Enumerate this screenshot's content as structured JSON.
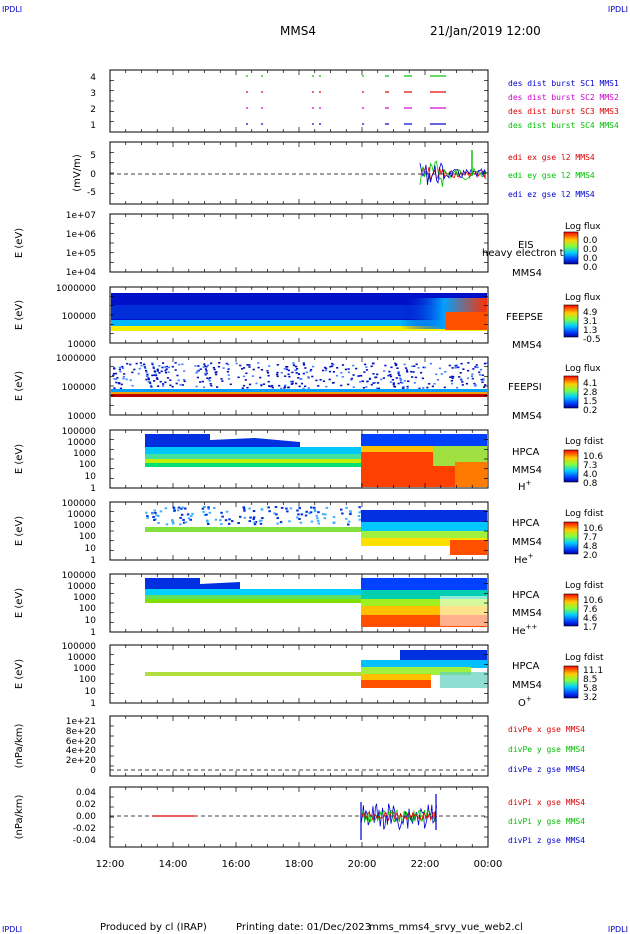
{
  "header": {
    "corner_left_top": "IPDLI",
    "corner_right_top": "IPDLI",
    "corner_left_bottom": "IPDLI",
    "corner_right_bottom": "IPDLI",
    "title": "MMS4",
    "datetime": "21/Jan/2019 12:00"
  },
  "footer": {
    "produced_by": "Produced by cl (IRAP)",
    "printing_date": "Printing date: 01/Dec/2023",
    "filename": "mms_mms4_srvy_vue_web2.cl"
  },
  "colors": {
    "red": "#e00000",
    "green": "#00c000",
    "blue": "#0000d0",
    "magenta": "#d000d0"
  },
  "chart_data": {
    "type": "multi-panel time series and spectrograms",
    "x_axis": {
      "range": [
        "12:00",
        "00:00"
      ],
      "tick_labels": [
        "12:00",
        "14:00",
        "16:00",
        "18:00",
        "20:00",
        "22:00",
        "00:00"
      ]
    },
    "panels": [
      {
        "id": "burst",
        "ylabel": "",
        "y_ticks": [
          "4",
          "3",
          "2",
          "1"
        ],
        "legend": [
          {
            "label": "des dist burst SC1 MMS1",
            "color": "#0000d0"
          },
          {
            "label": "des dist burst SC2 MMS2",
            "color": "#d000d0"
          },
          {
            "label": "des dist burst SC3 MMS3",
            "color": "#e00000"
          },
          {
            "label": "des dist burst SC4 MMS4",
            "color": "#00c000"
          }
        ]
      },
      {
        "id": "edi-e",
        "ylabel": "(mV/m)",
        "y_ticks": [
          "5",
          "0",
          "-5"
        ],
        "legend": [
          {
            "label": "edi ex gse l2 MMS4",
            "color": "#e00000"
          },
          {
            "label": "edi ey gse l2 MMS4",
            "color": "#00c000"
          },
          {
            "label": "edi ez gse l2 MMS4",
            "color": "#0000d0"
          }
        ]
      },
      {
        "id": "eis",
        "ylabel": "E (eV)",
        "y_ticks": [
          "1e+07",
          "1e+06",
          "1e+05",
          "1e+04"
        ],
        "labels": [
          "EIS",
          "MMS4"
        ],
        "overlay_text": "heavy electron ta",
        "colorbar": {
          "title": "Log flux",
          "ticks": [
            "0.0",
            "0.0",
            "0.0",
            "0.0"
          ]
        }
      },
      {
        "id": "feepse",
        "ylabel": "E (eV)",
        "y_ticks": [
          "1000000",
          "100000",
          "10000"
        ],
        "labels": [
          "FEEPSE",
          "MMS4"
        ],
        "colorbar": {
          "title": "Log flux",
          "ticks": [
            "4.9",
            "3.1",
            "1.3",
            "-0.5"
          ]
        }
      },
      {
        "id": "feepsi",
        "ylabel": "E (eV)",
        "y_ticks": [
          "1000000",
          "100000",
          "10000"
        ],
        "labels": [
          "FEEPSI",
          "MMS4"
        ],
        "colorbar": {
          "title": "Log flux",
          "ticks": [
            "4.1",
            "2.8",
            "1.5",
            "0.2"
          ]
        }
      },
      {
        "id": "hpca-h",
        "ylabel": "E (eV)",
        "y_ticks": [
          "100000",
          "10000",
          "1000",
          "100",
          "10",
          "1"
        ],
        "labels": [
          "HPCA",
          "MMS4"
        ],
        "species": "H",
        "species_sup": "+",
        "colorbar": {
          "title": "Log fdist",
          "ticks": [
            "10.6",
            "7.3",
            "4.0",
            "0.8"
          ]
        }
      },
      {
        "id": "hpca-he1",
        "ylabel": "E (eV)",
        "y_ticks": [
          "100000",
          "10000",
          "1000",
          "100",
          "10",
          "1"
        ],
        "labels": [
          "HPCA",
          "MMS4"
        ],
        "species": "He",
        "species_sup": "+",
        "colorbar": {
          "title": "Log fdist",
          "ticks": [
            "10.6",
            "7.7",
            "4.8",
            "2.0"
          ]
        }
      },
      {
        "id": "hpca-he2",
        "ylabel": "E (eV)",
        "y_ticks": [
          "100000",
          "10000",
          "1000",
          "100",
          "10",
          "1"
        ],
        "labels": [
          "HPCA",
          "MMS4"
        ],
        "species": "He",
        "species_sup": "++",
        "colorbar": {
          "title": "Log fdist",
          "ticks": [
            "10.6",
            "7.6",
            "4.6",
            "1.7"
          ]
        }
      },
      {
        "id": "hpca-o",
        "ylabel": "E (eV)",
        "y_ticks": [
          "100000",
          "10000",
          "1000",
          "100",
          "10",
          "1"
        ],
        "labels": [
          "HPCA",
          "MMS4"
        ],
        "species": "O",
        "species_sup": "+",
        "colorbar": {
          "title": "Log fdist",
          "ticks": [
            "11.1",
            "8.5",
            "5.8",
            "3.2"
          ]
        }
      },
      {
        "id": "divpe",
        "ylabel": "(nPa/km)",
        "y_ticks": [
          "1e+21",
          "8e+20",
          "6e+20",
          "4e+20",
          "2e+20",
          "0"
        ],
        "legend": [
          {
            "label": "divPe x gse MMS4",
            "color": "#e00000"
          },
          {
            "label": "divPe y gse MMS4",
            "color": "#00c000"
          },
          {
            "label": "divPe z gse MMS4",
            "color": "#0000d0"
          }
        ]
      },
      {
        "id": "divpi",
        "ylabel": "(nPa/km)",
        "y_ticks": [
          "0.04",
          "0.02",
          "0.00",
          "-0.02",
          "-0.04"
        ],
        "legend": [
          {
            "label": "divPi x gse MMS4",
            "color": "#e00000"
          },
          {
            "label": "divPi y gse MMS4",
            "color": "#00c000"
          },
          {
            "label": "divPi z gse MMS4",
            "color": "#0000d0"
          }
        ]
      }
    ]
  }
}
